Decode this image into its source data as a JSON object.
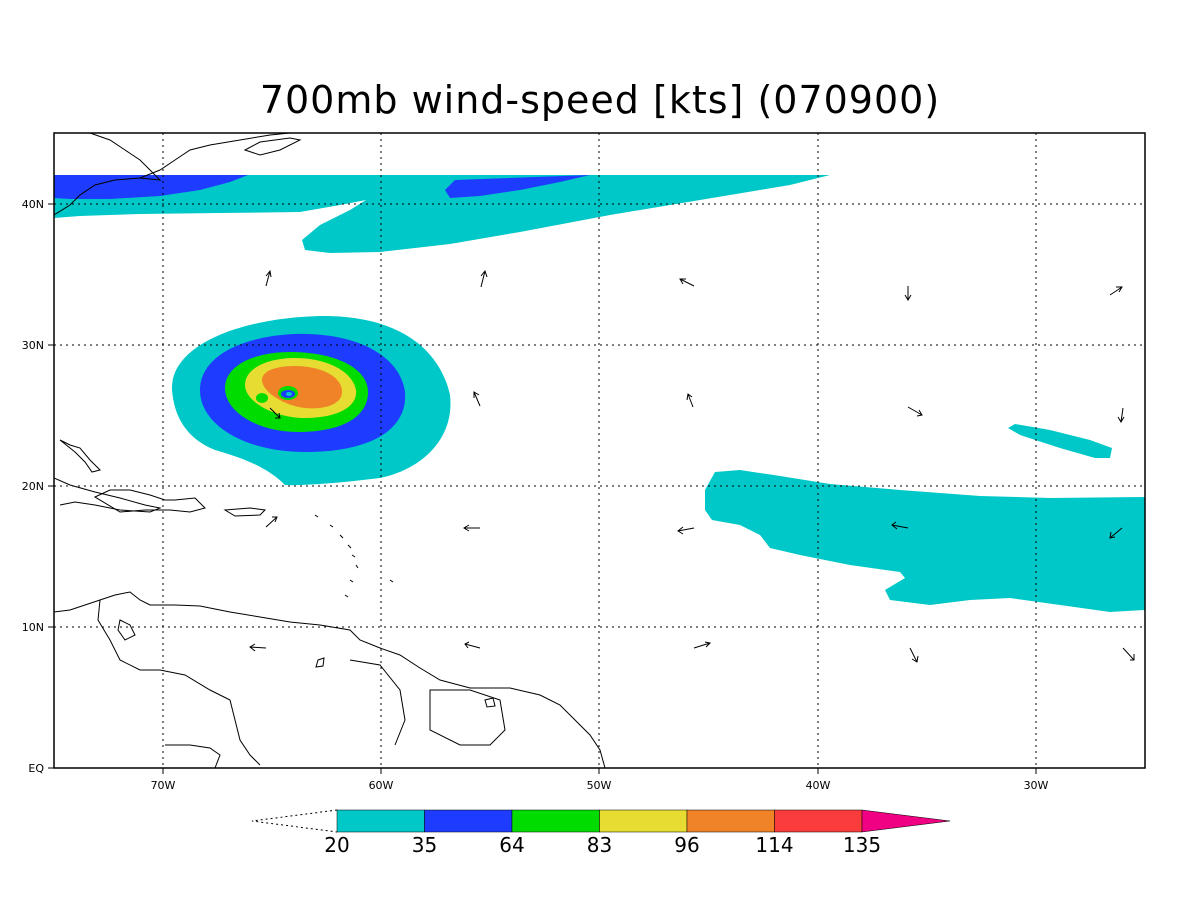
{
  "title": "700mb wind-speed [kts] (070900)",
  "axes": {
    "lon_labels": [
      "70W",
      "60W",
      "50W",
      "40W",
      "30W"
    ],
    "lat_labels": [
      "EQ",
      "10N",
      "20N",
      "30N",
      "40N"
    ]
  },
  "colorbar": {
    "levels": [
      "20",
      "35",
      "64",
      "83",
      "96",
      "114",
      "135"
    ],
    "colors": [
      "#00c8c8",
      "#1e3cff",
      "#00dc00",
      "#e6dc32",
      "#f08228",
      "#fa3c3c",
      "#f00082"
    ]
  },
  "map": {
    "lon_range": [
      -75,
      -25
    ],
    "lat_range": [
      0,
      45
    ]
  }
}
